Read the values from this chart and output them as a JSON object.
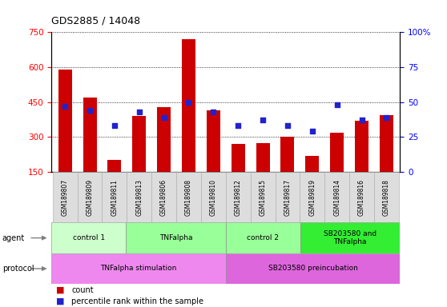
{
  "title": "GDS2885 / 14048",
  "samples": [
    "GSM189807",
    "GSM189809",
    "GSM189811",
    "GSM189813",
    "GSM189806",
    "GSM189808",
    "GSM189810",
    "GSM189812",
    "GSM189815",
    "GSM189817",
    "GSM189819",
    "GSM189814",
    "GSM189816",
    "GSM189818"
  ],
  "counts": [
    590,
    470,
    200,
    390,
    430,
    720,
    415,
    270,
    275,
    300,
    220,
    320,
    370,
    395
  ],
  "percentiles": [
    47,
    44,
    33,
    43,
    39,
    50,
    43,
    33,
    37,
    33,
    29,
    48,
    37,
    39
  ],
  "ylim_left": [
    150,
    750
  ],
  "ylim_right": [
    0,
    100
  ],
  "yticks_left": [
    150,
    300,
    450,
    600,
    750
  ],
  "yticks_right": [
    0,
    25,
    50,
    75,
    100
  ],
  "bar_color": "#cc0000",
  "dot_color": "#2222cc",
  "agent_groups": [
    {
      "label": "control 1",
      "start": 0,
      "end": 3,
      "color": "#ccffcc"
    },
    {
      "label": "TNFalpha",
      "start": 3,
      "end": 7,
      "color": "#99ff99"
    },
    {
      "label": "control 2",
      "start": 7,
      "end": 10,
      "color": "#99ff99"
    },
    {
      "label": "SB203580 and\nTNFalpha",
      "start": 10,
      "end": 14,
      "color": "#33ee33"
    }
  ],
  "protocol_groups": [
    {
      "label": "TNFalpha stimulation",
      "start": 0,
      "end": 7,
      "color": "#ee88ee"
    },
    {
      "label": "SB203580 preincubation",
      "start": 7,
      "end": 14,
      "color": "#dd66dd"
    }
  ],
  "agent_label": "agent",
  "protocol_label": "protocol",
  "legend_count": "count",
  "legend_percentile": "percentile rank within the sample"
}
